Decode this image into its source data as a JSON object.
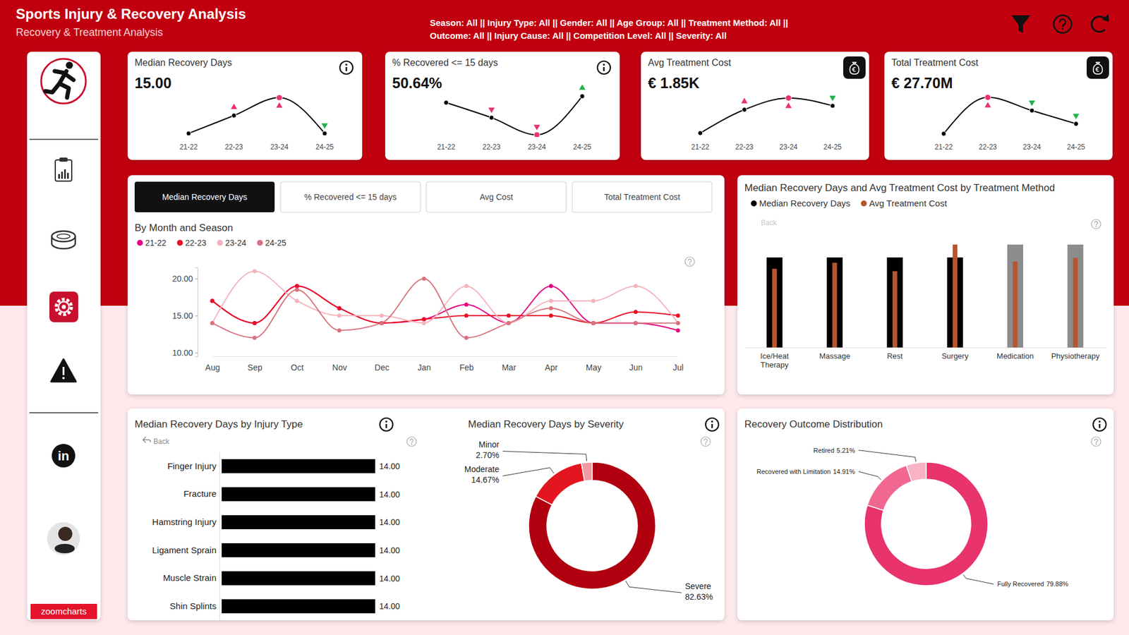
{
  "header": {
    "title": "Sports Injury & Recovery Analysis",
    "subtitle": "Recovery & Treatment Analysis",
    "filters": [
      "Season: All || Injury Type: All || Gender: All || Age Group: All || Treatment Method: All ||",
      "Outcome: All || Injury Cause: All || Competition Level: All || Severity: All"
    ],
    "social": "in",
    "brand": "zoomcharts"
  },
  "chart_data": [
    {
      "type": "line",
      "title": "Median Recovery Days",
      "kpi": "15.00",
      "categories": [
        "21-22",
        "22-23",
        "23-24",
        "24-25"
      ],
      "values": [
        14,
        14.5,
        15,
        14
      ],
      "color": "#000000",
      "colors": [
        null,
        "#e8336d",
        "#e8336d",
        "#22b14c"
      ],
      "ylim": [
        13.9,
        15.1
      ],
      "tick_labels": "x",
      "marker": "circle"
    },
    {
      "type": "line",
      "title": "% Recovered <= 15 days",
      "kpi": "50.64%",
      "categories": [
        "21-22",
        "22-23",
        "23-24",
        "24-25"
      ],
      "values": [
        51.1,
        50.4,
        49.6,
        51.4
      ],
      "color": "#000000",
      "colors": [
        null,
        "#e8336d",
        "#e8336d",
        "#22b14c"
      ],
      "ylim": [
        49.5,
        51.5
      ],
      "tick_labels": "x",
      "marker": "circle"
    },
    {
      "type": "line",
      "title": "Avg Treatment Cost",
      "kpi": "€ 1.85K",
      "categories": [
        "21-22",
        "22-23",
        "23-24",
        "24-25"
      ],
      "values": [
        1.78,
        1.84,
        1.87,
        1.85
      ],
      "color": "#000000",
      "colors": [
        null,
        "#e8336d",
        "#e8336d",
        "#22b14c"
      ],
      "ylim": [
        1.77,
        1.88
      ],
      "tick_labels": "x",
      "marker": "circle"
    },
    {
      "type": "line",
      "title": "Total Treatment Cost",
      "kpi": "€ 27.70M",
      "categories": [
        "21-22",
        "22-23",
        "23-24",
        "24-25"
      ],
      "values": [
        6.4,
        7.5,
        7.1,
        6.7
      ],
      "color": "#000000",
      "colors": [
        null,
        "#e8336d",
        "#22b14c",
        "#22b14c"
      ],
      "ylim": [
        6.3,
        7.6
      ],
      "tick_labels": "x",
      "marker": "circle"
    },
    {
      "type": "line",
      "title": "By Month and Season",
      "tabs": [
        "Median Recovery Days",
        "% Recovered <= 15 days",
        "Avg Cost",
        "Total Treatment Cost"
      ],
      "categories": [
        "Aug",
        "Sep",
        "Oct",
        "Nov",
        "Dec",
        "Jan",
        "Feb",
        "Mar",
        "Apr",
        "May",
        "Jun",
        "Jul"
      ],
      "series": [
        {
          "name": "21-22",
          "color": "#e6007e",
          "values": [
            17,
            14,
            19,
            16,
            14,
            14.5,
            16.5,
            14,
            19,
            14,
            14,
            13
          ]
        },
        {
          "name": "22-23",
          "color": "#e81123",
          "values": [
            17,
            14,
            19,
            16,
            14,
            14.5,
            15,
            15,
            15,
            14,
            15.5,
            15
          ]
        },
        {
          "name": "23-24",
          "color": "#f4b3bd",
          "values": [
            14,
            21,
            17,
            15,
            15,
            14,
            19,
            14,
            17,
            17,
            19,
            14
          ]
        },
        {
          "name": "24-25",
          "color": "#d9727e",
          "values": [
            14,
            12,
            18.5,
            13,
            14,
            20,
            12,
            14,
            16,
            14,
            14,
            14
          ]
        }
      ],
      "ylim": [
        9.5,
        21.5
      ],
      "yticks": [
        {
          "value": 10,
          "label": "10.00"
        },
        {
          "value": 15,
          "label": "15.00"
        },
        {
          "value": 20,
          "label": "20.00"
        }
      ],
      "legend": "top-left",
      "marker": "circle",
      "grid": false
    },
    {
      "type": "bar",
      "title": "Median Recovery Days and Avg Treatment Cost by Treatment Method",
      "annotations": [
        "Back"
      ],
      "categories": [
        "Ice/Heat Therapy",
        "Massage",
        "Rest",
        "Surgery",
        "Medication",
        "Physiotherapy"
      ],
      "series": [
        {
          "name": "Median Recovery Days",
          "color": "#000000",
          "colors": [
            "#000000",
            "#000000",
            "#000000",
            "#000000",
            "#8c8c8c",
            "#8c8c8c"
          ],
          "values": [
            14,
            14,
            14,
            14,
            15,
            15
          ]
        },
        {
          "name": "Avg Treatment Cost",
          "color": "#b5562e",
          "axis": "y2",
          "values": [
            1800,
            1850,
            1780,
            2000,
            1860,
            1890
          ]
        }
      ],
      "ylim": [
        7,
        15
      ],
      "y2lim": [
        1150,
        2000
      ],
      "tick_labels": "x",
      "legend": "top-left"
    },
    {
      "type": "bar",
      "orientation": "horizontal",
      "title": "Median Recovery Days by Injury Type",
      "annotations": [
        "Back"
      ],
      "categories": [
        "Finger Injury",
        "Fracture",
        "Hamstring Injury",
        "Ligament Sprain",
        "Muscle Strain",
        "Shin Splints"
      ],
      "values": [
        14,
        14,
        14,
        14,
        14,
        14
      ],
      "value_labels": [
        "14.00",
        "14.00",
        "14.00",
        "14.00",
        "14.00",
        "14.00"
      ],
      "data_labels": true,
      "color": "#000000",
      "xlim": [
        0,
        14
      ],
      "tick_labels": "y"
    },
    {
      "type": "pie",
      "title": "Median Recovery Days by Severity",
      "categories": [
        "Severe",
        "Moderate",
        "Minor"
      ],
      "values": [
        82.63,
        14.67,
        2.7
      ],
      "value_labels": [
        "82.63%",
        "14.67%",
        "2.70%"
      ],
      "colors": [
        "#b0000f",
        "#e3161f",
        "#f19aa3"
      ],
      "data_labels": true
    },
    {
      "type": "pie",
      "title": "Recovery Outcome Distribution",
      "categories": [
        "Fully Recovered",
        "Recovered with Limitation",
        "Retired"
      ],
      "values": [
        79.88,
        14.91,
        5.21
      ],
      "value_labels": [
        "79.88%",
        "14.91%",
        "5.21%"
      ],
      "colors": [
        "#e8336d",
        "#f06892",
        "#f7b2c6"
      ],
      "data_labels": true
    }
  ]
}
